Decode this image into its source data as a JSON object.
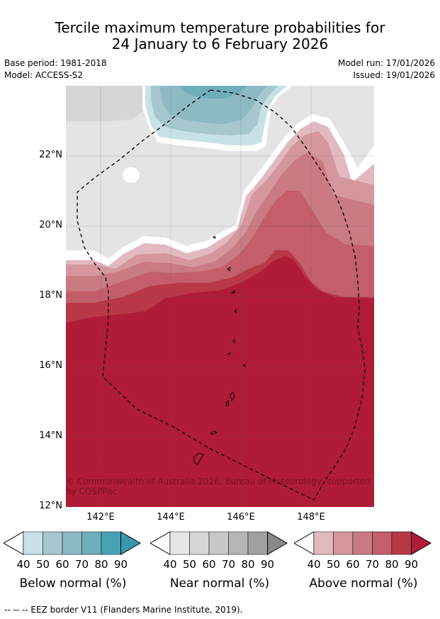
{
  "title_line1": "Tercile maximum temperature probabilities for",
  "title_line2": "24 January to 6 February 2026",
  "meta": {
    "base_period": "Base period: 1981-2018",
    "model": "Model: ACCESS-S2",
    "model_run": "Model run: 17/01/2026",
    "issued": "Issued: 19/01/2026"
  },
  "map": {
    "lat_labels": [
      "22°N",
      "20°N",
      "18°N",
      "16°N",
      "14°N",
      "12°N"
    ],
    "lon_labels": [
      "142°E",
      "144°E",
      "146°E",
      "148°E"
    ],
    "copyright": "© Commonwealth of Australia 2026, Bureau of Meteorology, supported by COSPPac",
    "colors": {
      "land_outline": "#000000",
      "no_data": "#ffffff",
      "near_40": "#e4e4e4",
      "near_50": "#d6d6d6",
      "below_40": "#c8e1e7",
      "below_50": "#a7c7cf",
      "below_60": "#8db9c3",
      "below_70": "#6fadbb",
      "above_40": "#e2b9c0",
      "above_50": "#d5969e",
      "above_60": "#c97a83",
      "above_70": "#c35e6a",
      "above_80": "#b83848",
      "above_90": "#b01c38"
    }
  },
  "colorbars": [
    {
      "title": "Below normal (%)",
      "ticks": [
        "40",
        "50",
        "60",
        "70",
        "80",
        "90"
      ],
      "colors": [
        "#ffffff",
        "#c8e1e7",
        "#a7c7cf",
        "#8db9c3",
        "#6fadbb",
        "#47a2b5",
        "#3798ad"
      ]
    },
    {
      "title": "Near normal (%)",
      "ticks": [
        "40",
        "50",
        "60",
        "70",
        "80",
        "90"
      ],
      "colors": [
        "#ffffff",
        "#e6e6e6",
        "#d6d6d6",
        "#c8c8c8",
        "#b5b5b5",
        "#a0a0a0",
        "#888888"
      ]
    },
    {
      "title": "Above normal (%)",
      "ticks": [
        "40",
        "50",
        "60",
        "70",
        "80",
        "90"
      ],
      "colors": [
        "#ffffff",
        "#e2b9c0",
        "#d5969e",
        "#c97a83",
        "#c35e6a",
        "#b83848",
        "#b01c38"
      ]
    }
  ],
  "footnote": "--  --  -- EEZ border V11 (Flanders Marine Institute, 2019)."
}
